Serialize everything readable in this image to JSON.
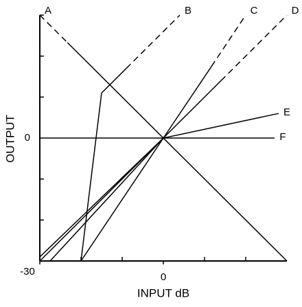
{
  "chart_data": {
    "type": "line",
    "xlabel": "INPUT dB",
    "ylabel": "OUTPUT",
    "xlim": [
      -30,
      30
    ],
    "ylim": [
      -30,
      30
    ],
    "xticks": [
      -30,
      0
    ],
    "xminor_ticks": [
      -20,
      -10,
      10,
      20
    ],
    "yticks": [
      0
    ],
    "yminor_ticks": [
      -20,
      -10,
      10,
      20,
      30
    ],
    "color": "#000000",
    "series": [
      {
        "name": "A",
        "x": [
          -30,
          -23.3,
          30
        ],
        "y": [
          30,
          23.3,
          -30
        ],
        "styles": [
          "dashed",
          "solid"
        ]
      },
      {
        "name": "B",
        "x": [
          -20,
          -15,
          -9,
          4
        ],
        "y": [
          -30,
          11,
          17,
          30
        ],
        "styles": [
          "solid",
          "solid",
          "dashed"
        ]
      },
      {
        "name": "C",
        "x": [
          -20,
          0,
          11.7,
          20
        ],
        "y": [
          -30,
          0,
          17.5,
          30
        ],
        "styles": [
          "solid",
          "solid",
          "dashed"
        ]
      },
      {
        "name": "D",
        "x": [
          -30,
          0,
          14,
          30
        ],
        "y": [
          -30,
          0,
          14,
          30
        ],
        "styles": [
          "solid",
          "solid",
          "dashed"
        ]
      },
      {
        "name": "E",
        "x": [
          -30,
          0,
          28
        ],
        "y": [
          -29,
          0,
          6
        ],
        "styles": [
          "solid",
          "solid"
        ]
      },
      {
        "name": "F",
        "x": [
          -27.5,
          0,
          27
        ],
        "y": [
          -30,
          0,
          0
        ],
        "styles": [
          "solid",
          "solid"
        ]
      }
    ]
  }
}
